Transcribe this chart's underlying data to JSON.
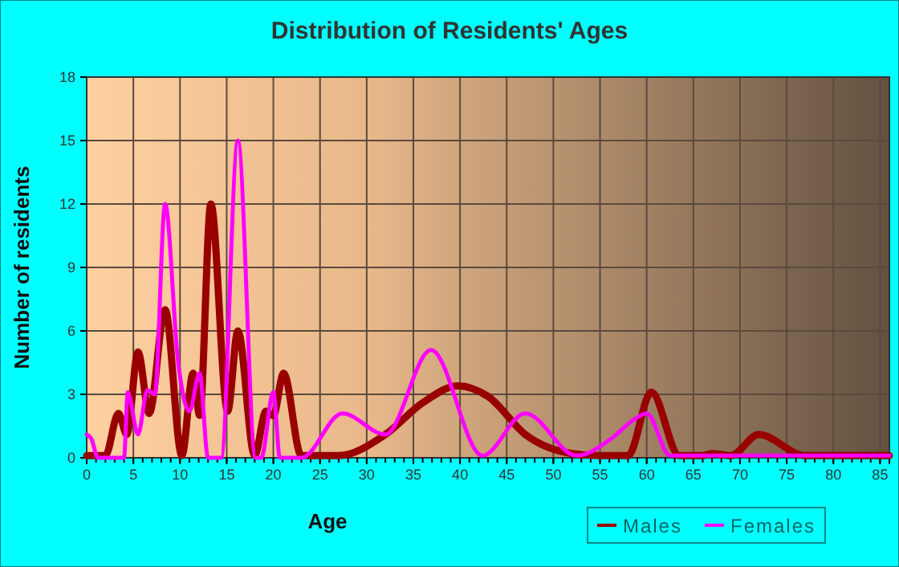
{
  "chart_data": {
    "type": "line",
    "title": "Distribution of Residents' Ages",
    "xlabel": "Age",
    "ylabel": "Number of residents",
    "xlim": [
      0,
      86
    ],
    "xticks": [
      0,
      5,
      10,
      15,
      20,
      25,
      30,
      35,
      40,
      45,
      50,
      55,
      60,
      65,
      70,
      75,
      80,
      85
    ],
    "ylim": [
      0,
      18
    ],
    "yticks": [
      0,
      3,
      6,
      9,
      12,
      15,
      18
    ],
    "grid": true,
    "legend": "bottom right",
    "marker": "none",
    "line_style": "solid",
    "series": [
      {
        "name": "Males",
        "color": "#990000",
        "x": [
          0,
          2,
          3.4,
          4.3,
          5.5,
          6.7,
          8.4,
          10.2,
          11.4,
          12.1,
          13.3,
          15.1,
          16.2,
          18,
          19.2,
          20,
          21.1,
          23,
          27,
          32,
          36,
          39.8,
          43,
          47,
          52,
          55,
          58,
          60.5,
          63.5,
          66,
          67,
          69,
          72,
          77,
          86
        ],
        "values": [
          0.1,
          0.1,
          2.1,
          1.1,
          5,
          2.1,
          7,
          0.1,
          4,
          2,
          12,
          2.2,
          6,
          0.1,
          2.2,
          2,
          4,
          0.1,
          0.1,
          1.1,
          2.6,
          3.4,
          2.9,
          1.1,
          0.2,
          0.1,
          0.1,
          3.1,
          0.1,
          0.1,
          0.2,
          0.1,
          1.1,
          0.1,
          0.1
        ]
      },
      {
        "name": "Females",
        "color": "#ff00ff",
        "x": [
          0,
          0.5,
          1.2,
          4,
          4.4,
          5.5,
          6.5,
          7.3,
          8.4,
          9.8,
          11,
          12.1,
          13,
          14.4,
          16.2,
          18.1,
          18.7,
          20,
          20.7,
          23,
          27.4,
          32,
          36.9,
          42.4,
          47,
          52.5,
          56.2,
          58.6,
          60,
          62.5,
          86
        ],
        "values": [
          1.1,
          0.9,
          0,
          0,
          3.1,
          1.1,
          3.2,
          3,
          12,
          4.5,
          2.2,
          4,
          0,
          0,
          15,
          0,
          0,
          3.1,
          0,
          0,
          2.1,
          1.1,
          5.1,
          0.1,
          2.1,
          0.1,
          0.9,
          1.8,
          2.1,
          0.1,
          0.1
        ]
      }
    ]
  }
}
